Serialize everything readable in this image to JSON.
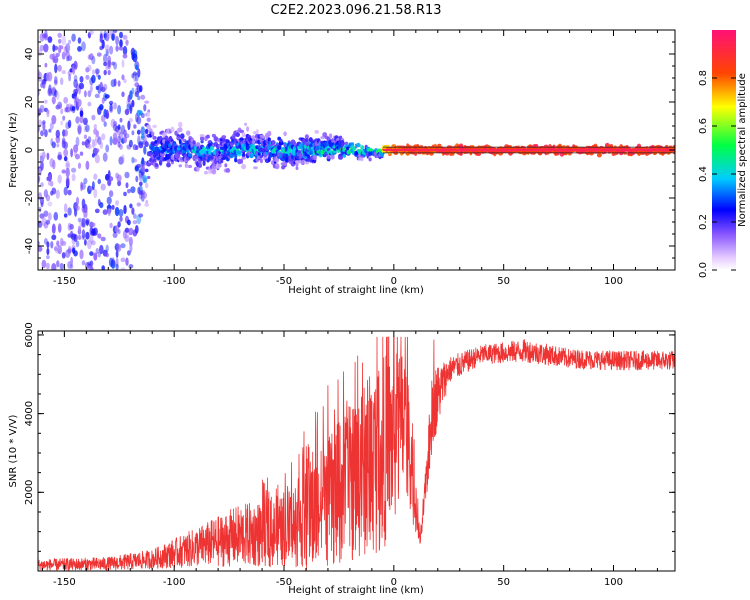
{
  "figure": {
    "title": "C2E2.2023.096.21.58.R13"
  },
  "chart_data": [
    {
      "type": "heatmap",
      "title": "C2E2.2023.096.21.58.R13",
      "xlabel": "Height of straight line (km)",
      "ylabel": "Frequency (Hz)",
      "xlim": [
        -162,
        128
      ],
      "ylim": [
        -50,
        50
      ],
      "x_ticks": [
        -150,
        -100,
        -50,
        0,
        50,
        100
      ],
      "y_ticks": [
        -40,
        -20,
        0,
        20,
        40
      ],
      "colorbar": {
        "label": "Normalized spectral amplitude",
        "range": [
          0,
          1
        ],
        "ticks": [
          0.0,
          0.2,
          0.4,
          0.6,
          0.8
        ]
      },
      "description_points": {
        "center_frequency_hz": 0,
        "spread_profile": [
          {
            "x": -160,
            "spread_hz": 50,
            "amplitude": 0.2
          },
          {
            "x": -120,
            "spread_hz": 50,
            "amplitude": 0.25
          },
          {
            "x": -110,
            "spread_hz": 8,
            "amplitude": 0.35
          },
          {
            "x": -80,
            "spread_hz": 7,
            "amplitude": 0.4
          },
          {
            "x": -50,
            "spread_hz": 6,
            "amplitude": 0.45
          },
          {
            "x": -30,
            "spread_hz": 5,
            "amplitude": 0.5
          },
          {
            "x": -10,
            "spread_hz": 2,
            "amplitude": 0.6
          },
          {
            "x": 0,
            "spread_hz": 1.5,
            "amplitude": 0.9
          },
          {
            "x": 50,
            "spread_hz": 1.5,
            "amplitude": 0.95
          },
          {
            "x": 128,
            "spread_hz": 1.5,
            "amplitude": 0.95
          }
        ]
      }
    },
    {
      "type": "line",
      "xlabel": "Height of straight line (km)",
      "ylabel": "SNR (10 * V/V)",
      "xlim": [
        -162,
        128
      ],
      "ylim": [
        0,
        6100
      ],
      "x_ticks": [
        -150,
        -100,
        -50,
        0,
        50,
        100
      ],
      "y_ticks": [
        2000,
        4000,
        6000
      ],
      "series": [
        {
          "name": "SNR",
          "color": "#ee3333",
          "envelope": [
            {
              "x": -162,
              "mean": 150,
              "spread": 150
            },
            {
              "x": -130,
              "mean": 180,
              "spread": 180
            },
            {
              "x": -110,
              "mean": 300,
              "spread": 250
            },
            {
              "x": -90,
              "mean": 600,
              "spread": 500
            },
            {
              "x": -70,
              "mean": 900,
              "spread": 800
            },
            {
              "x": -50,
              "mean": 1000,
              "spread": 900
            },
            {
              "x": -35,
              "mean": 1500,
              "spread": 1500
            },
            {
              "x": -20,
              "mean": 2200,
              "spread": 2000
            },
            {
              "x": -5,
              "mean": 3000,
              "spread": 2500
            },
            {
              "x": 5,
              "mean": 3800,
              "spread": 2000
            },
            {
              "x": 12,
              "mean": 700,
              "spread": 100
            },
            {
              "x": 18,
              "mean": 4200,
              "spread": 1000
            },
            {
              "x": 25,
              "mean": 5100,
              "spread": 350
            },
            {
              "x": 40,
              "mean": 5500,
              "spread": 250
            },
            {
              "x": 60,
              "mean": 5600,
              "spread": 300
            },
            {
              "x": 80,
              "mean": 5400,
              "spread": 250
            },
            {
              "x": 100,
              "mean": 5350,
              "spread": 250
            },
            {
              "x": 128,
              "mean": 5350,
              "spread": 250
            }
          ]
        }
      ]
    }
  ]
}
